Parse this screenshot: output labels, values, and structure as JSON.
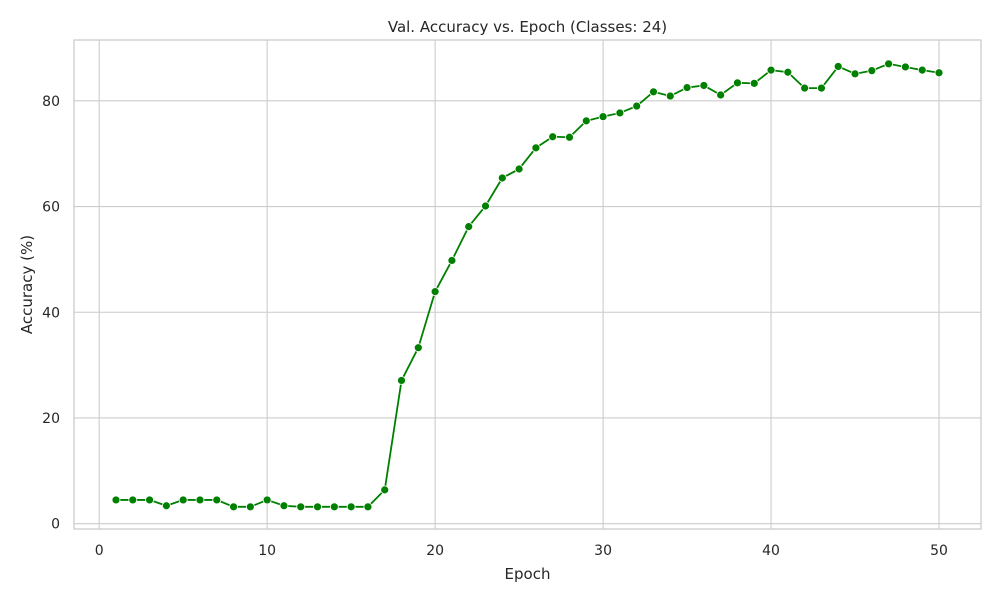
{
  "chart_data": {
    "type": "line",
    "title": "Val. Accuracy vs. Epoch (Classes: 24)",
    "xlabel": "Epoch",
    "ylabel": "Accuracy (%)",
    "xlim": [
      -1.5,
      52.5
    ],
    "ylim": [
      -1,
      91.5
    ],
    "xticks": [
      0,
      10,
      20,
      30,
      40,
      50
    ],
    "yticks": [
      0,
      20,
      40,
      60,
      80
    ],
    "grid": true,
    "legend": "none",
    "series": [
      {
        "color": "#008000",
        "marker": "circle",
        "x": [
          1,
          2,
          3,
          4,
          5,
          6,
          7,
          8,
          9,
          10,
          11,
          12,
          13,
          14,
          15,
          16,
          17,
          18,
          19,
          20,
          21,
          22,
          23,
          24,
          25,
          26,
          27,
          28,
          29,
          30,
          31,
          32,
          33,
          34,
          35,
          36,
          37,
          38,
          39,
          40,
          41,
          42,
          43,
          44,
          45,
          46,
          47,
          48,
          49,
          50
        ],
        "y": [
          4.5,
          4.5,
          4.5,
          3.4,
          4.5,
          4.5,
          4.5,
          3.2,
          3.2,
          4.5,
          3.4,
          3.2,
          3.2,
          3.2,
          3.2,
          3.2,
          6.4,
          27.1,
          33.3,
          43.9,
          49.8,
          56.2,
          60.1,
          65.4,
          67.1,
          71.1,
          73.2,
          73.1,
          76.2,
          77.0,
          77.7,
          79.0,
          81.7,
          80.9,
          82.5,
          82.9,
          81.1,
          83.4,
          83.3,
          85.8,
          85.4,
          82.4,
          82.4,
          86.5,
          85.1,
          85.7,
          87.0,
          86.4,
          85.8,
          85.3
        ]
      }
    ]
  }
}
